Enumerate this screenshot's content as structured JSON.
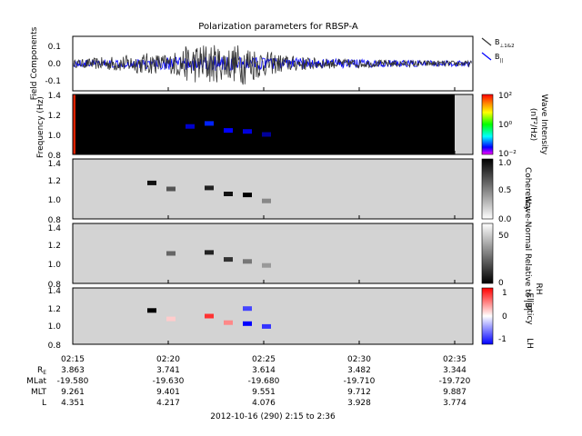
{
  "colors": {
    "trace_perp": "#333333",
    "trace_par": "#0000ff",
    "spectrogram_bg": "#000000",
    "fill_gap": "#d3d3d3",
    "left_edge_band": "#dd2200"
  },
  "chart_data": [
    {
      "type": "line",
      "title": "Polarization parameters for RBSP-A",
      "ylabel": "Field Components",
      "ylim": [
        -0.15,
        0.15
      ],
      "yticks": [
        "0.1",
        "0.0",
        "-0.1"
      ],
      "series": [
        {
          "name_main": "B",
          "name_sub": "⊥1&2",
          "color": "#333333"
        },
        {
          "name_main": "B",
          "name_sub": "||",
          "color": "#0000ff"
        }
      ],
      "envelope_par": [
        {
          "t": "02:15",
          "amp": 0.02
        },
        {
          "t": "02:18",
          "amp": 0.025
        },
        {
          "t": "02:21",
          "amp": 0.04
        },
        {
          "t": "02:23",
          "amp": 0.04
        },
        {
          "t": "02:24",
          "amp": 0.035
        },
        {
          "t": "02:27",
          "amp": 0.03
        },
        {
          "t": "02:31",
          "amp": 0.02
        },
        {
          "t": "02:36",
          "amp": 0.015
        }
      ],
      "envelope_perp": [
        {
          "t": "02:15",
          "amp": 0.02
        },
        {
          "t": "02:17",
          "amp": 0.04
        },
        {
          "t": "02:19",
          "amp": 0.06
        },
        {
          "t": "02:20",
          "amp": 0.05
        },
        {
          "t": "02:21",
          "amp": 0.1
        },
        {
          "t": "02:22",
          "amp": 0.12
        },
        {
          "t": "02:23",
          "amp": 0.09
        },
        {
          "t": "02:24",
          "amp": 0.12
        },
        {
          "t": "02:25",
          "amp": 0.07
        },
        {
          "t": "02:26",
          "amp": 0.05
        },
        {
          "t": "02:28",
          "amp": 0.03
        },
        {
          "t": "02:31",
          "amp": 0.02
        },
        {
          "t": "02:36",
          "amp": 0.015
        }
      ]
    },
    {
      "type": "heatmap",
      "ylabel": "Frequency (Hz)",
      "ylim": [
        0.8,
        1.4
      ],
      "yticks": [
        "1.4",
        "1.2",
        "1.0",
        "0.8"
      ],
      "background": "black",
      "data_end": "02:35",
      "colorbar": {
        "label": "Wave Intensity",
        "units": "(nT²/Hz)",
        "scale": "log",
        "ticks": [
          "10²",
          "10⁰",
          "10⁻²"
        ]
      },
      "blobs": [
        {
          "t": "02:21",
          "f": 1.08,
          "color": "#0000cc"
        },
        {
          "t": "02:22",
          "f": 1.11,
          "color": "#0022ff"
        },
        {
          "t": "02:23",
          "f": 1.04,
          "color": "#0000ff"
        },
        {
          "t": "02:24",
          "f": 1.03,
          "color": "#0000dd"
        },
        {
          "t": "02:25",
          "f": 1.0,
          "color": "#000099"
        }
      ]
    },
    {
      "type": "heatmap",
      "ylabel": "",
      "ylim": [
        0.8,
        1.4
      ],
      "yticks": [
        "1.4",
        "1.2",
        "1.0",
        "0.8"
      ],
      "background": "lightgray",
      "colorbar": {
        "label": "Coherency",
        "ticks": [
          "1.0",
          "0.5",
          "0.0"
        ]
      },
      "blobs": [
        {
          "t": "02:19",
          "f": 1.16,
          "color": "#111111"
        },
        {
          "t": "02:20",
          "f": 1.1,
          "color": "#555555"
        },
        {
          "t": "02:22",
          "f": 1.11,
          "color": "#222222"
        },
        {
          "t": "02:23",
          "f": 1.05,
          "color": "#111111"
        },
        {
          "t": "02:24",
          "f": 1.04,
          "color": "#000000"
        },
        {
          "t": "02:25",
          "f": 0.98,
          "color": "#888888"
        }
      ]
    },
    {
      "type": "heatmap",
      "ylabel": "",
      "ylim": [
        0.8,
        1.4
      ],
      "yticks": [
        "1.4",
        "1.2",
        "1.0",
        "0.8"
      ],
      "background": "lightgray",
      "colorbar": {
        "label": "Wave-Normal Relative to |B|",
        "units": "RH",
        "ticks": [
          "50",
          "0"
        ]
      },
      "blobs": [
        {
          "t": "02:20",
          "f": 1.1,
          "color": "#666666"
        },
        {
          "t": "02:22",
          "f": 1.11,
          "color": "#222222"
        },
        {
          "t": "02:23",
          "f": 1.04,
          "color": "#333333"
        },
        {
          "t": "02:24",
          "f": 1.02,
          "color": "#777777"
        },
        {
          "t": "02:25",
          "f": 0.98,
          "color": "#999999"
        }
      ]
    },
    {
      "type": "heatmap",
      "ylabel": "",
      "ylim": [
        0.8,
        1.4
      ],
      "yticks": [
        "1.4",
        "1.2",
        "1.0",
        "0.8"
      ],
      "background": "lightgray",
      "colorbar": {
        "label": "Ellipticy",
        "bottom_label": "LH",
        "ticks": [
          "1",
          "0",
          "-1"
        ]
      },
      "blobs": [
        {
          "t": "02:19",
          "f": 1.16,
          "color": "#000000"
        },
        {
          "t": "02:20",
          "f": 1.07,
          "color": "#ffcccc"
        },
        {
          "t": "02:22",
          "f": 1.1,
          "color": "#ff3333"
        },
        {
          "t": "02:23",
          "f": 1.03,
          "color": "#ff8888"
        },
        {
          "t": "02:24",
          "f": 1.18,
          "color": "#4444ff"
        },
        {
          "t": "02:24",
          "f": 1.02,
          "color": "#0000ff"
        },
        {
          "t": "02:25",
          "f": 0.99,
          "color": "#3333ff"
        }
      ]
    }
  ],
  "time_axis": {
    "ticks": [
      "02:15",
      "02:20",
      "02:25",
      "02:30",
      "02:35"
    ],
    "ephemeris": [
      {
        "label": "R",
        "sub": "E",
        "values": [
          "3.863",
          "3.741",
          "3.614",
          "3.482",
          "3.344"
        ]
      },
      {
        "label": "MLat",
        "sub": "",
        "values": [
          "-19.580",
          "-19.630",
          "-19.680",
          "-19.710",
          "-19.720"
        ]
      },
      {
        "label": "MLT",
        "sub": "",
        "values": [
          "9.261",
          "9.401",
          "9.551",
          "9.712",
          "9.887"
        ]
      },
      {
        "label": "L",
        "sub": "",
        "values": [
          "4.351",
          "4.217",
          "4.076",
          "3.928",
          "3.774"
        ]
      }
    ],
    "footer": "2012-10-16 (290) 2:15 to 2:36"
  }
}
